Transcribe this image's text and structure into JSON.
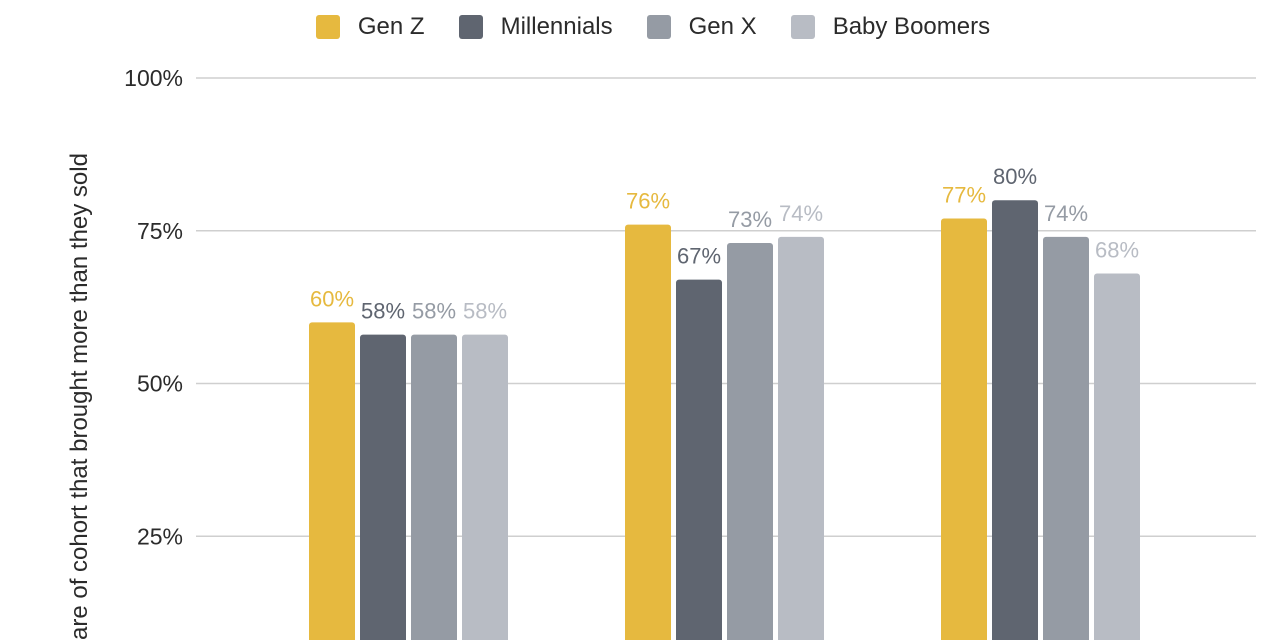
{
  "chart_data": {
    "type": "bar",
    "categories": [
      "",
      "",
      ""
    ],
    "series": [
      {
        "name": "Gen Z",
        "color": "#e6b93f",
        "values": [
          60,
          76,
          77
        ],
        "labels": [
          "60%",
          "76%",
          "77%"
        ]
      },
      {
        "name": "Millennials",
        "color": "#5f6570",
        "values": [
          58,
          67,
          80
        ],
        "labels": [
          "58%",
          "67%",
          "80%"
        ]
      },
      {
        "name": "Gen X",
        "color": "#959ba4",
        "values": [
          58,
          73,
          74
        ],
        "labels": [
          "58%",
          "73%",
          "74%"
        ]
      },
      {
        "name": "Baby Boomers",
        "color": "#b8bcc4",
        "values": [
          58,
          74,
          68
        ],
        "labels": [
          "58%",
          "74%",
          "68%"
        ]
      }
    ],
    "ylabel": "are of cohort that brought more than they sold",
    "ylim": [
      0,
      100
    ],
    "yticks": [
      25,
      50,
      75,
      100
    ],
    "ytick_labels": [
      "25%",
      "50%",
      "75%",
      "100%"
    ],
    "grid": true,
    "legend_position": "top"
  }
}
